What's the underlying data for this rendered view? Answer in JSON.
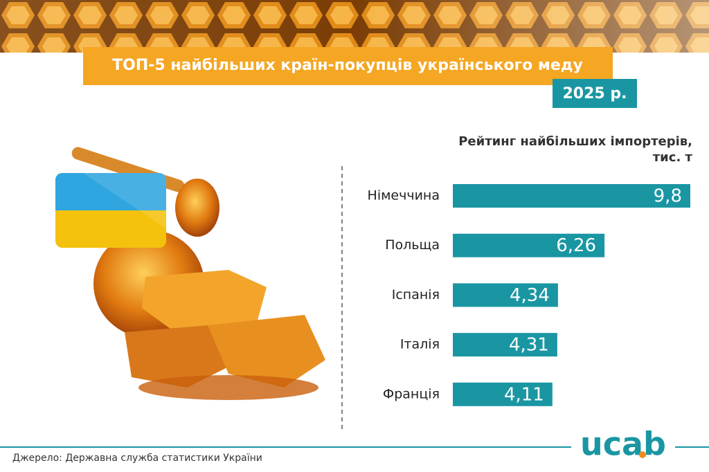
{
  "chart_data": {
    "type": "bar",
    "orientation": "horizontal",
    "title": "ТОП-5 найбільших країн-покупців українського меду",
    "year_label": "2025 р.",
    "subtitle": [
      "Рейтинг найбільших імпортерів,",
      "тис. т"
    ],
    "categories": [
      "Німеччина",
      "Польща",
      "Іспанія",
      "Італія",
      "Франція"
    ],
    "values": [
      9.8,
      6.26,
      4.34,
      4.31,
      4.11
    ],
    "value_labels": [
      "9,8",
      "6,26",
      "4,34",
      "4,31",
      "4,11"
    ],
    "color": "#1a96a3"
  },
  "source": "Джерело: Державна служба статистики України",
  "logo": "ucab"
}
